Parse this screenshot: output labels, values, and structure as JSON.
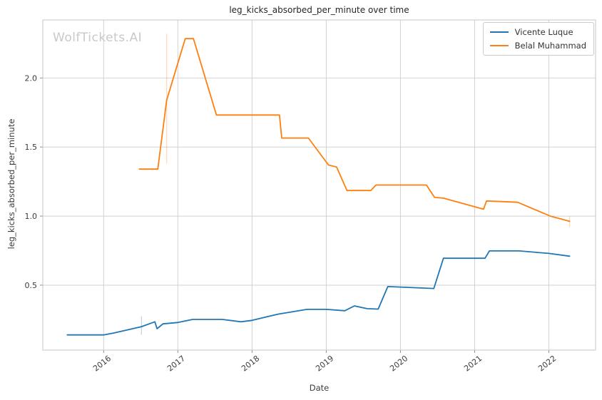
{
  "watermark": "WolfTickets.AI",
  "chart_data": {
    "type": "line",
    "title": "leg_kicks_absorbed_per_minute over time",
    "xlabel": "Date",
    "ylabel": "leg_kicks_absorbed_per_minute",
    "xlim": [
      2015.18,
      2022.63
    ],
    "ylim": [
      0.03,
      2.42
    ],
    "x_ticks": [
      "2016",
      "2017",
      "2018",
      "2019",
      "2020",
      "2021",
      "2022"
    ],
    "y_ticks": [
      "0.5",
      "1.0",
      "1.5",
      "2.0"
    ],
    "grid": true,
    "legend_position": "upper right",
    "colors": {
      "grid": "#d2d2d2",
      "spine": "#c4c4c4",
      "tick": "#8f8f8f",
      "text": "#3b3b3b",
      "title": "#262626",
      "watermark": "#c9c9c9"
    },
    "series": [
      {
        "name": "Vicente Luque",
        "slug": "vicente-luque",
        "color": "#1f77b4",
        "points": [
          [
            2015.51,
            0.14
          ],
          [
            2016.0,
            0.14
          ],
          [
            2016.15,
            0.155
          ],
          [
            2016.51,
            0.2
          ],
          [
            2016.69,
            0.235
          ],
          [
            2016.72,
            0.185
          ],
          [
            2016.8,
            0.22
          ],
          [
            2017.0,
            0.23
          ],
          [
            2017.2,
            0.252
          ],
          [
            2017.6,
            0.252
          ],
          [
            2017.85,
            0.235
          ],
          [
            2018.0,
            0.245
          ],
          [
            2018.35,
            0.29
          ],
          [
            2018.74,
            0.325
          ],
          [
            2019.0,
            0.325
          ],
          [
            2019.25,
            0.315
          ],
          [
            2019.38,
            0.35
          ],
          [
            2019.55,
            0.33
          ],
          [
            2019.7,
            0.327
          ],
          [
            2019.83,
            0.49
          ],
          [
            2020.45,
            0.476
          ],
          [
            2020.58,
            0.695
          ],
          [
            2021.14,
            0.695
          ],
          [
            2021.2,
            0.748
          ],
          [
            2021.6,
            0.748
          ],
          [
            2022.0,
            0.73
          ],
          [
            2022.28,
            0.71
          ]
        ],
        "error_bars": [
          {
            "x": 2016.51,
            "lo": 0.14,
            "hi": 0.275
          }
        ]
      },
      {
        "name": "Belal Muhammad",
        "slug": "belal-muhammad",
        "color": "#ff7f0e",
        "points": [
          [
            2016.48,
            1.34
          ],
          [
            2016.73,
            1.34
          ],
          [
            2016.85,
            1.84
          ],
          [
            2017.1,
            2.285
          ],
          [
            2017.21,
            2.285
          ],
          [
            2017.52,
            1.732
          ],
          [
            2018.37,
            1.732
          ],
          [
            2018.4,
            1.565
          ],
          [
            2018.76,
            1.565
          ],
          [
            2019.03,
            1.37
          ],
          [
            2019.14,
            1.355
          ],
          [
            2019.28,
            1.185
          ],
          [
            2019.6,
            1.185
          ],
          [
            2019.67,
            1.225
          ],
          [
            2020.35,
            1.225
          ],
          [
            2020.46,
            1.135
          ],
          [
            2020.58,
            1.13
          ],
          [
            2021.12,
            1.05
          ],
          [
            2021.16,
            1.11
          ],
          [
            2021.58,
            1.1
          ],
          [
            2022.02,
            1.0
          ],
          [
            2022.28,
            0.962
          ]
        ],
        "error_bars": [
          {
            "x": 2016.85,
            "lo": 1.38,
            "hi": 2.32
          },
          {
            "x": 2022.28,
            "lo": 0.922,
            "hi": 1.0
          }
        ]
      }
    ]
  }
}
